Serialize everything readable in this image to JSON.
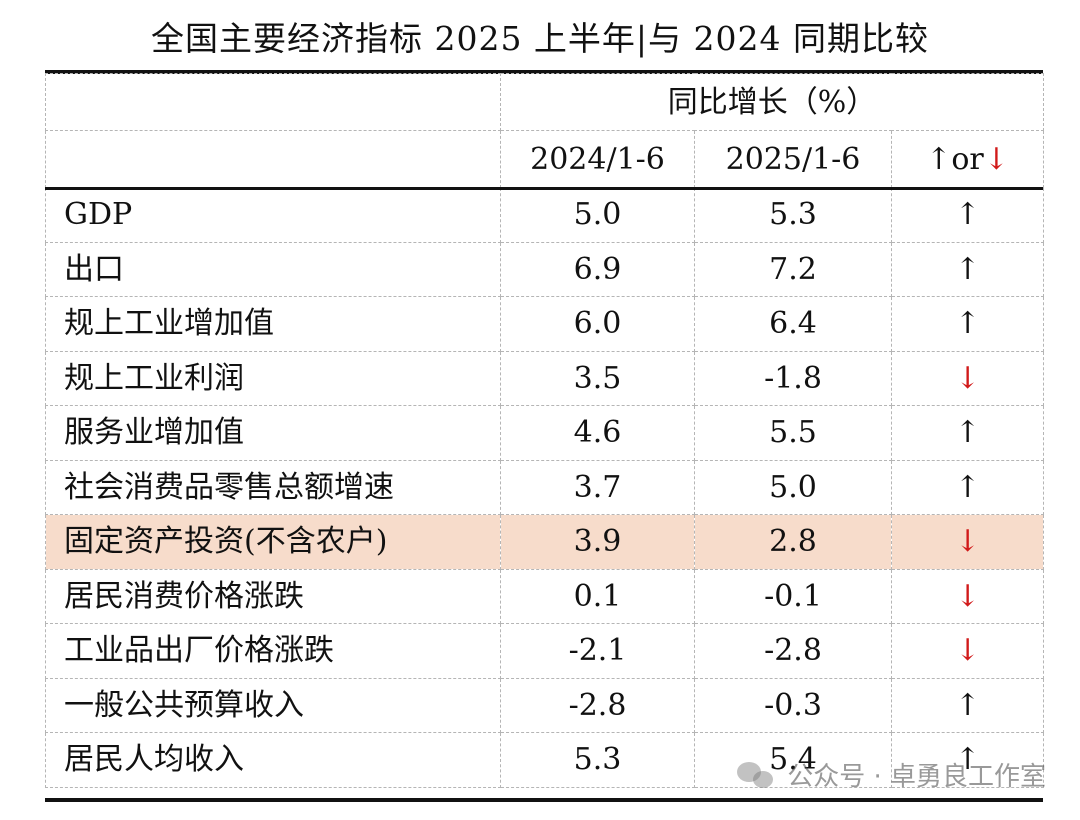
{
  "title": "全国主要经济指标 2025 上半年|与 2024 同期比较",
  "header": {
    "group_label": "同比增长（%）",
    "col_2024": "2024/1-6",
    "col_2025": "2025/1-6",
    "col_dir_up": "↑",
    "col_dir_or": "or",
    "col_dir_down": "↓"
  },
  "rows": [
    {
      "name": "GDP",
      "v2024": "5.0",
      "v2025": "5.3",
      "dir": "↑"
    },
    {
      "name": "出口",
      "v2024": "6.9",
      "v2025": "7.2",
      "dir": "↑"
    },
    {
      "name": "规上工业增加值",
      "v2024": "6.0",
      "v2025": "6.4",
      "dir": "↑"
    },
    {
      "name": "规上工业利润",
      "v2024": "3.5",
      "v2025": "-1.8",
      "dir": "↓"
    },
    {
      "name": "服务业增加值",
      "v2024": "4.6",
      "v2025": "5.5",
      "dir": "↑"
    },
    {
      "name": "社会消费品零售总额增速",
      "v2024": "3.7",
      "v2025": "5.0",
      "dir": "↑"
    },
    {
      "name": "固定资产投资(不含农户)",
      "v2024": "3.9",
      "v2025": "2.8",
      "dir": "↓"
    },
    {
      "name": "居民消费价格涨跌",
      "v2024": "0.1",
      "v2025": "-0.1",
      "dir": "↓"
    },
    {
      "name": "工业品出厂价格涨跌",
      "v2024": "-2.1",
      "v2025": "-2.8",
      "dir": "↓"
    },
    {
      "name": "一般公共预算收入",
      "v2024": "-2.8",
      "v2025": "-0.3",
      "dir": "↑"
    },
    {
      "name": "居民人均收入",
      "v2024": "5.3",
      "v2025": "5.4",
      "dir": "↑"
    }
  ],
  "watermark": "公众号 · 卓勇良工作室",
  "colors": {
    "up": "#111111",
    "down": "#d11a1a",
    "highlight_row": "#f7dccb"
  }
}
